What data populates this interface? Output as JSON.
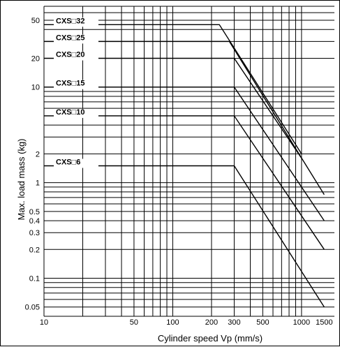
{
  "chart_data": {
    "type": "line",
    "xlabel": "Cylinder speed Vp (mm/s)",
    "ylabel": "Max. load mass  (kg)",
    "x_scale": "log",
    "y_scale": "log",
    "xlim": [
      10,
      1800
    ],
    "ylim": [
      0.04,
      70
    ],
    "grid": true,
    "x_ticks": [
      {
        "value": 10,
        "label": "10"
      },
      {
        "value": 50,
        "label": "50"
      },
      {
        "value": 100,
        "label": "100"
      },
      {
        "value": 200,
        "label": "200"
      },
      {
        "value": 300,
        "label": "300"
      },
      {
        "value": 500,
        "label": "500"
      },
      {
        "value": 1000,
        "label": "1000"
      },
      {
        "value": 1500,
        "label": "1500"
      }
    ],
    "y_ticks": [
      {
        "value": 0.05,
        "label": "0.05"
      },
      {
        "value": 0.1,
        "label": "0.1"
      },
      {
        "value": 0.2,
        "label": "0.2"
      },
      {
        "value": 0.3,
        "label": "0.3"
      },
      {
        "value": 0.4,
        "label": "0.4"
      },
      {
        "value": 0.5,
        "label": "0.5"
      },
      {
        "value": 1,
        "label": "1"
      },
      {
        "value": 2,
        "label": "2"
      },
      {
        "value": 10,
        "label": "10"
      },
      {
        "value": 20,
        "label": "20"
      },
      {
        "value": 50,
        "label": "50"
      }
    ],
    "series": [
      {
        "name": "CXS□32",
        "label_y": 45,
        "x": [
          10,
          230,
          1000
        ],
        "y": [
          45,
          45,
          2
        ]
      },
      {
        "name": "CXS□25",
        "label_y": 30,
        "x": [
          10,
          275,
          1500
        ],
        "y": [
          30,
          30,
          0.75
        ]
      },
      {
        "name": "CXS□20",
        "label_y": 20,
        "x": [
          10,
          300,
          1000
        ],
        "y": [
          20,
          20,
          1.8
        ]
      },
      {
        "name": "CXS□15",
        "label_y": 10,
        "x": [
          10,
          300,
          1500
        ],
        "y": [
          10,
          10,
          0.4
        ]
      },
      {
        "name": "CXS□10",
        "label_y": 5,
        "x": [
          10,
          300,
          1500
        ],
        "y": [
          5,
          5,
          0.2
        ]
      },
      {
        "name": "CXS□6",
        "label_y": 1.5,
        "x": [
          10,
          300,
          1500
        ],
        "y": [
          1.5,
          1.5,
          0.05
        ]
      }
    ]
  }
}
